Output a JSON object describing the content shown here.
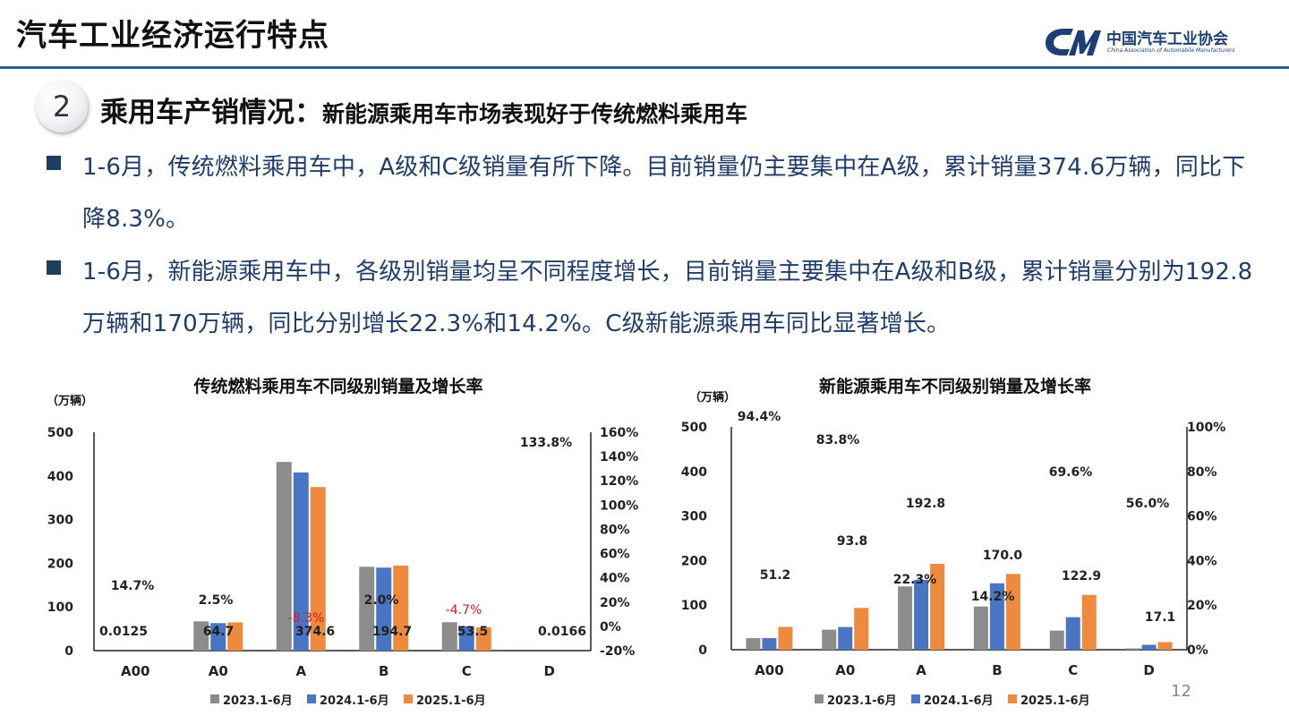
{
  "header": {
    "title": "汽车工业经济运行特点",
    "logo_cn": "中国汽车工业协会",
    "logo_en": "China Association of Automobile Manufacturers"
  },
  "section": {
    "number": "2",
    "title": "乘用车产销情况：",
    "subtitle": "新能源乘用车市场表现好于传统燃料乘用车"
  },
  "bullets": [
    "1-6月，传统燃料乘用车中，A级和C级销量有所下降。目前销量仍主要集中在A级，累计销量374.6万辆，同比下降8.3%。",
    "1-6月，新能源乘用车中，各级别销量均呈不同程度增长，目前销量主要集中在A级和B级，累计销量分别为192.8万辆和170万辆，同比分别增长22.3%和14.2%。C级新能源乘用车同比显著增长。"
  ],
  "page_number": "12",
  "colors": {
    "series_2023": "#8c8c8c",
    "series_2024": "#4a74c4",
    "series_2025": "#ee8a3e",
    "negative_label": "#d02020",
    "bullet_text": "#1f3d6a",
    "header_line": "#2a5f8f"
  },
  "chart_data": [
    {
      "type": "bar",
      "title": "传统燃料乘用车不同级别销量及增长率",
      "ylabel": "（万辆）",
      "categories": [
        "A00",
        "A0",
        "A",
        "B",
        "C",
        "D"
      ],
      "series": [
        {
          "name": "2023.1-6月",
          "values": [
            0.02,
            67,
            432,
            192,
            65,
            0.01
          ]
        },
        {
          "name": "2024.1-6月",
          "values": [
            0.01,
            63,
            408,
            190,
            56,
            0.01
          ]
        },
        {
          "name": "2025.1-6月",
          "values": [
            0.0125,
            64.7,
            374.6,
            194.7,
            53.5,
            0.0166
          ]
        }
      ],
      "value_labels": [
        "0.0125",
        "64.7",
        "374.6",
        "194.7",
        "53.5",
        "0.0166"
      ],
      "growth_labels": [
        "14.7%",
        "2.5%",
        "-8.3%",
        "2.0%",
        "-4.7%",
        "133.8%"
      ],
      "growth_values": [
        14.7,
        2.5,
        -8.3,
        2.0,
        -4.7,
        133.8
      ],
      "ylim": [
        0,
        500
      ],
      "yticks": [
        "0",
        "100",
        "200",
        "300",
        "400",
        "500"
      ],
      "y2lim": [
        -20,
        160
      ],
      "y2ticks": [
        "-20%",
        "0%",
        "20%",
        "40%",
        "60%",
        "80%",
        "100%",
        "120%",
        "140%",
        "160%"
      ],
      "legend": "bottom",
      "grid": false
    },
    {
      "type": "bar",
      "title": "新能源乘用车不同级别销量及增长率",
      "ylabel": "（万辆）",
      "categories": [
        "A00",
        "A0",
        "A",
        "B",
        "C",
        "D"
      ],
      "series": [
        {
          "name": "2023.1-6月",
          "values": [
            26,
            45,
            142,
            97,
            43,
            3
          ]
        },
        {
          "name": "2024.1-6月",
          "values": [
            26,
            51,
            157,
            149,
            73,
            11
          ]
        },
        {
          "name": "2025.1-6月",
          "values": [
            51.2,
            93.8,
            192.8,
            170.0,
            122.9,
            17.1
          ]
        }
      ],
      "value_labels": [
        "51.2",
        "93.8",
        "192.8",
        "170.0",
        "122.9",
        "17.1"
      ],
      "growth_labels": [
        "94.4%",
        "83.8%",
        "22.3%",
        "14.2%",
        "69.6%",
        "56.0%"
      ],
      "growth_values": [
        94.4,
        83.8,
        22.3,
        14.2,
        69.6,
        56.0
      ],
      "ylim": [
        0,
        500
      ],
      "yticks": [
        "0",
        "100",
        "200",
        "300",
        "400",
        "500"
      ],
      "y2lim": [
        0,
        100
      ],
      "y2ticks": [
        "0%",
        "20%",
        "40%",
        "60%",
        "80%",
        "100%"
      ],
      "legend": "bottom",
      "grid": false
    }
  ]
}
